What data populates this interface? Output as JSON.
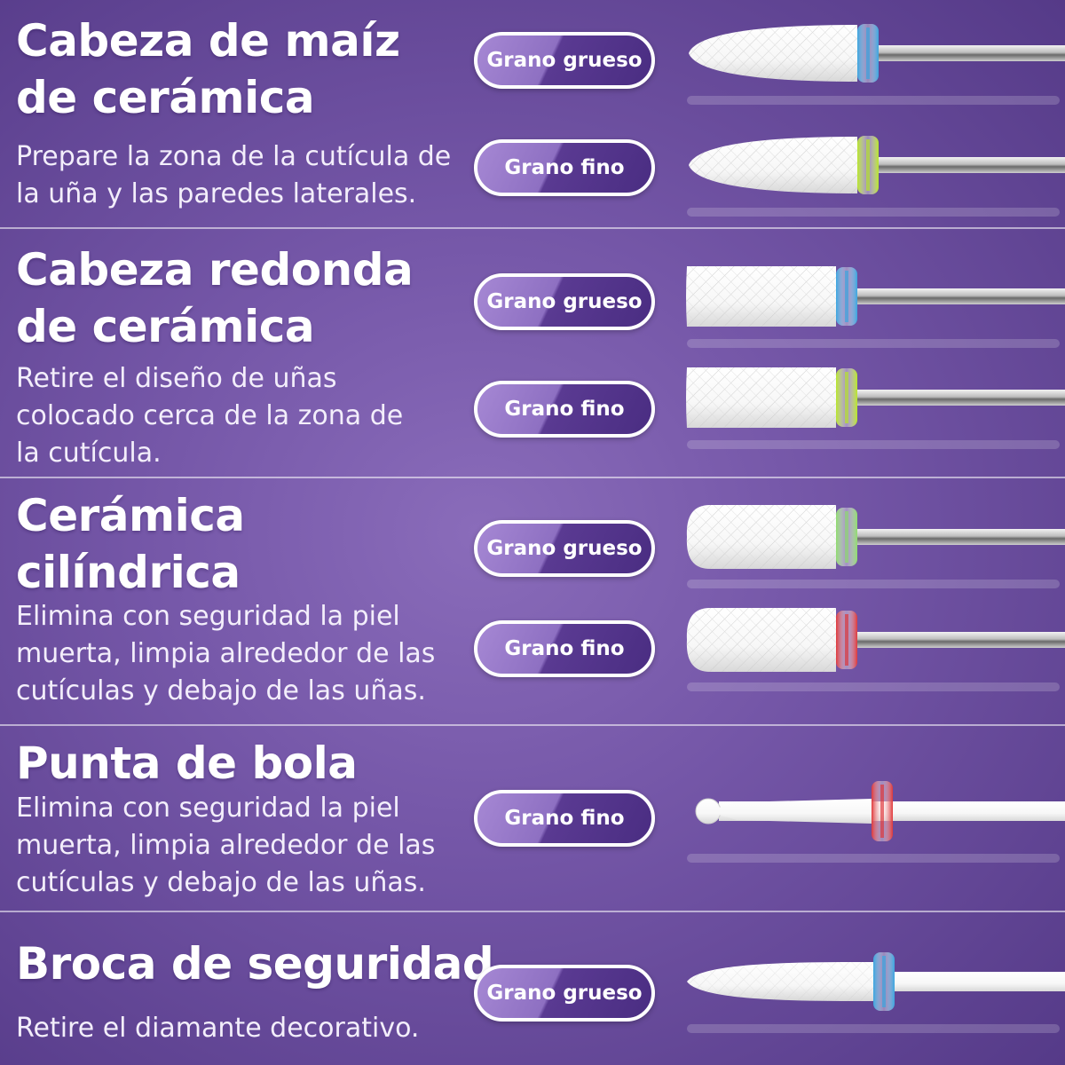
{
  "sections": [
    {
      "title_lines": [
        "Cabeza de maíz",
        "de cerámica"
      ],
      "desc": "Prepare la zona de la cutícula de la uña y las paredes laterales.",
      "tools": [
        {
          "label": "Grano grueso",
          "ring": "#3aa6e0",
          "head": "corn"
        },
        {
          "label": "Grano fino",
          "ring": "#b8e62a",
          "head": "corn"
        }
      ]
    },
    {
      "title_lines": [
        "Cabeza redonda",
        "de cerámica"
      ],
      "desc": "Retire el diseño de uñas colocado cerca de la zona de la cutícula.",
      "tools": [
        {
          "label": "Grano grueso",
          "ring": "#3aa6e0",
          "head": "flat"
        },
        {
          "label": "Grano fino",
          "ring": "#b8e62a",
          "head": "flat"
        }
      ]
    },
    {
      "title_lines": [
        "Cerámica",
        "cilíndrica"
      ],
      "desc": "Elimina con seguridad la piel muerta, limpia alrededor de las cutículas y debajo de las uñas.",
      "tools": [
        {
          "label": "Grano grueso",
          "ring": "#8fdc6e",
          "head": "round"
        },
        {
          "label": "Grano fino",
          "ring": "#e0383a",
          "head": "round"
        }
      ]
    },
    {
      "title_lines": [
        "Punta de bola"
      ],
      "desc": "Elimina con seguridad la piel muerta, limpia alrededor de las cutículas y debajo de las uñas.",
      "tools": [
        {
          "label": "Grano fino",
          "ring": "#e0383a",
          "head": "ball"
        }
      ]
    },
    {
      "title_lines": [
        "Broca de seguridad"
      ],
      "desc": "Retire el diamante decorativo.",
      "tools": [
        {
          "label": "Grano grueso",
          "ring": "#3aa6e0",
          "head": "safety"
        }
      ]
    }
  ]
}
